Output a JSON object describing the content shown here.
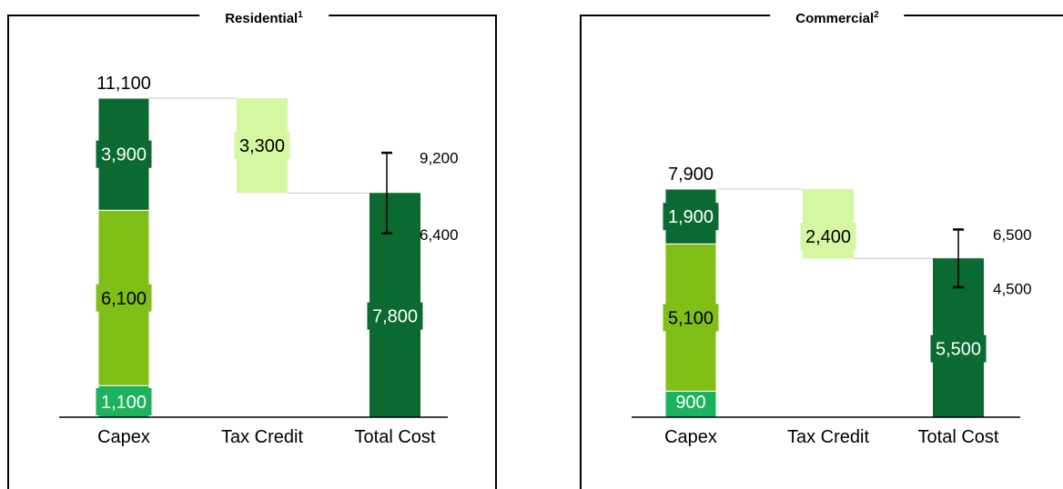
{
  "colors": {
    "dark_green": "#0b6a31",
    "lime_green": "#7fbf17",
    "emerald_green": "#1db35e",
    "light_green": "#d6f7a1",
    "frame": "#000000",
    "connector": "#c8c8c8"
  },
  "chart_data": [
    {
      "type": "bar",
      "subtype": "waterfall",
      "title": "Residential",
      "title_footnote": "1",
      "categories": [
        "Capex",
        "Tax Credit",
        "Total Cost"
      ],
      "ylim": [
        0,
        11100
      ],
      "capex": {
        "total": 11100,
        "total_label": "11,100",
        "segments": [
          {
            "value": 1100,
            "label": "1,100",
            "color": "#1db35e"
          },
          {
            "value": 6100,
            "label": "6,100",
            "color": "#7fbf17"
          },
          {
            "value": 3900,
            "label": "3,900",
            "color": "#0b6a31"
          }
        ]
      },
      "tax_credit": {
        "value": 3300,
        "label": "3,300",
        "color": "#d6f7a1"
      },
      "total_cost": {
        "value": 7800,
        "label": "7,800",
        "color": "#0b6a31",
        "range_low": 6400,
        "range_low_label": "6,400",
        "range_high": 9200,
        "range_high_label": "9,200"
      }
    },
    {
      "type": "bar",
      "subtype": "waterfall",
      "title": "Commercial",
      "title_footnote": "2",
      "categories": [
        "Capex",
        "Tax Credit",
        "Total Cost"
      ],
      "ylim": [
        0,
        7900
      ],
      "capex": {
        "total": 7900,
        "total_label": "7,900",
        "segments": [
          {
            "value": 900,
            "label": "900",
            "color": "#1db35e"
          },
          {
            "value": 5100,
            "label": "5,100",
            "color": "#7fbf17"
          },
          {
            "value": 1900,
            "label": "1,900",
            "color": "#0b6a31"
          }
        ]
      },
      "tax_credit": {
        "value": 2400,
        "label": "2,400",
        "color": "#d6f7a1"
      },
      "total_cost": {
        "value": 5500,
        "label": "5,500",
        "color": "#0b6a31",
        "range_low": 4500,
        "range_low_label": "4,500",
        "range_high": 6500,
        "range_high_label": "6,500"
      }
    }
  ]
}
